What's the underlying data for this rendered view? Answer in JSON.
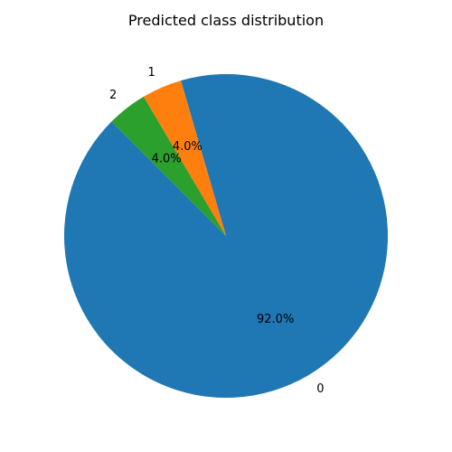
{
  "chart_data": {
    "type": "pie",
    "title": "Predicted class distribution",
    "start_angle_deg": 135,
    "direction": "counterclockwise",
    "slices": [
      {
        "label": "0",
        "value": 92.0,
        "pct_text": "92.0%",
        "color": "#1f77b4"
      },
      {
        "label": "1",
        "value": 4.0,
        "pct_text": "4.0%",
        "color": "#ff7f0e"
      },
      {
        "label": "2",
        "value": 4.0,
        "pct_text": "4.0%",
        "color": "#2ca02c"
      }
    ]
  }
}
